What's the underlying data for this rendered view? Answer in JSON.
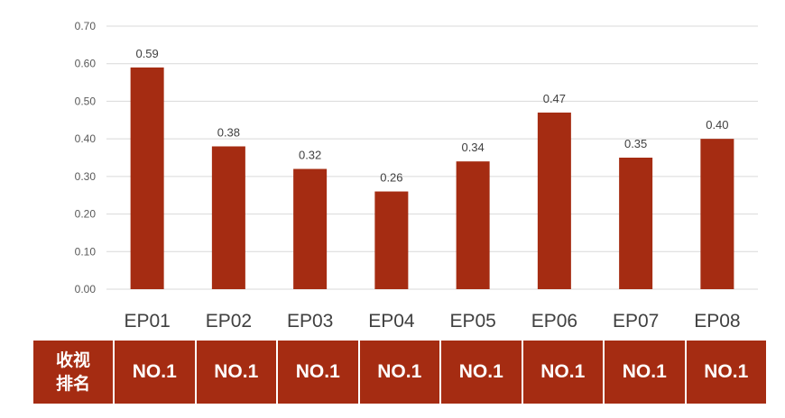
{
  "chart_data": {
    "type": "bar",
    "categories": [
      "EP01",
      "EP02",
      "EP03",
      "EP04",
      "EP05",
      "EP06",
      "EP07",
      "EP08"
    ],
    "values": [
      0.59,
      0.38,
      0.32,
      0.26,
      0.34,
      0.47,
      0.35,
      0.4
    ],
    "data_labels": [
      "0.59",
      "0.38",
      "0.32",
      "0.26",
      "0.34",
      "0.47",
      "0.35",
      "0.40"
    ],
    "ylim": [
      0,
      0.7
    ],
    "yticks": [
      "0.00",
      "0.10",
      "0.20",
      "0.30",
      "0.40",
      "0.50",
      "0.60",
      "0.70"
    ],
    "grid": true,
    "bar_color": "#a52c12"
  },
  "rank_table": {
    "header": "收视\n排名",
    "values": [
      "NO.1",
      "NO.1",
      "NO.1",
      "NO.1",
      "NO.1",
      "NO.1",
      "NO.1",
      "NO.1"
    ],
    "cell_color": "#a52c12"
  }
}
